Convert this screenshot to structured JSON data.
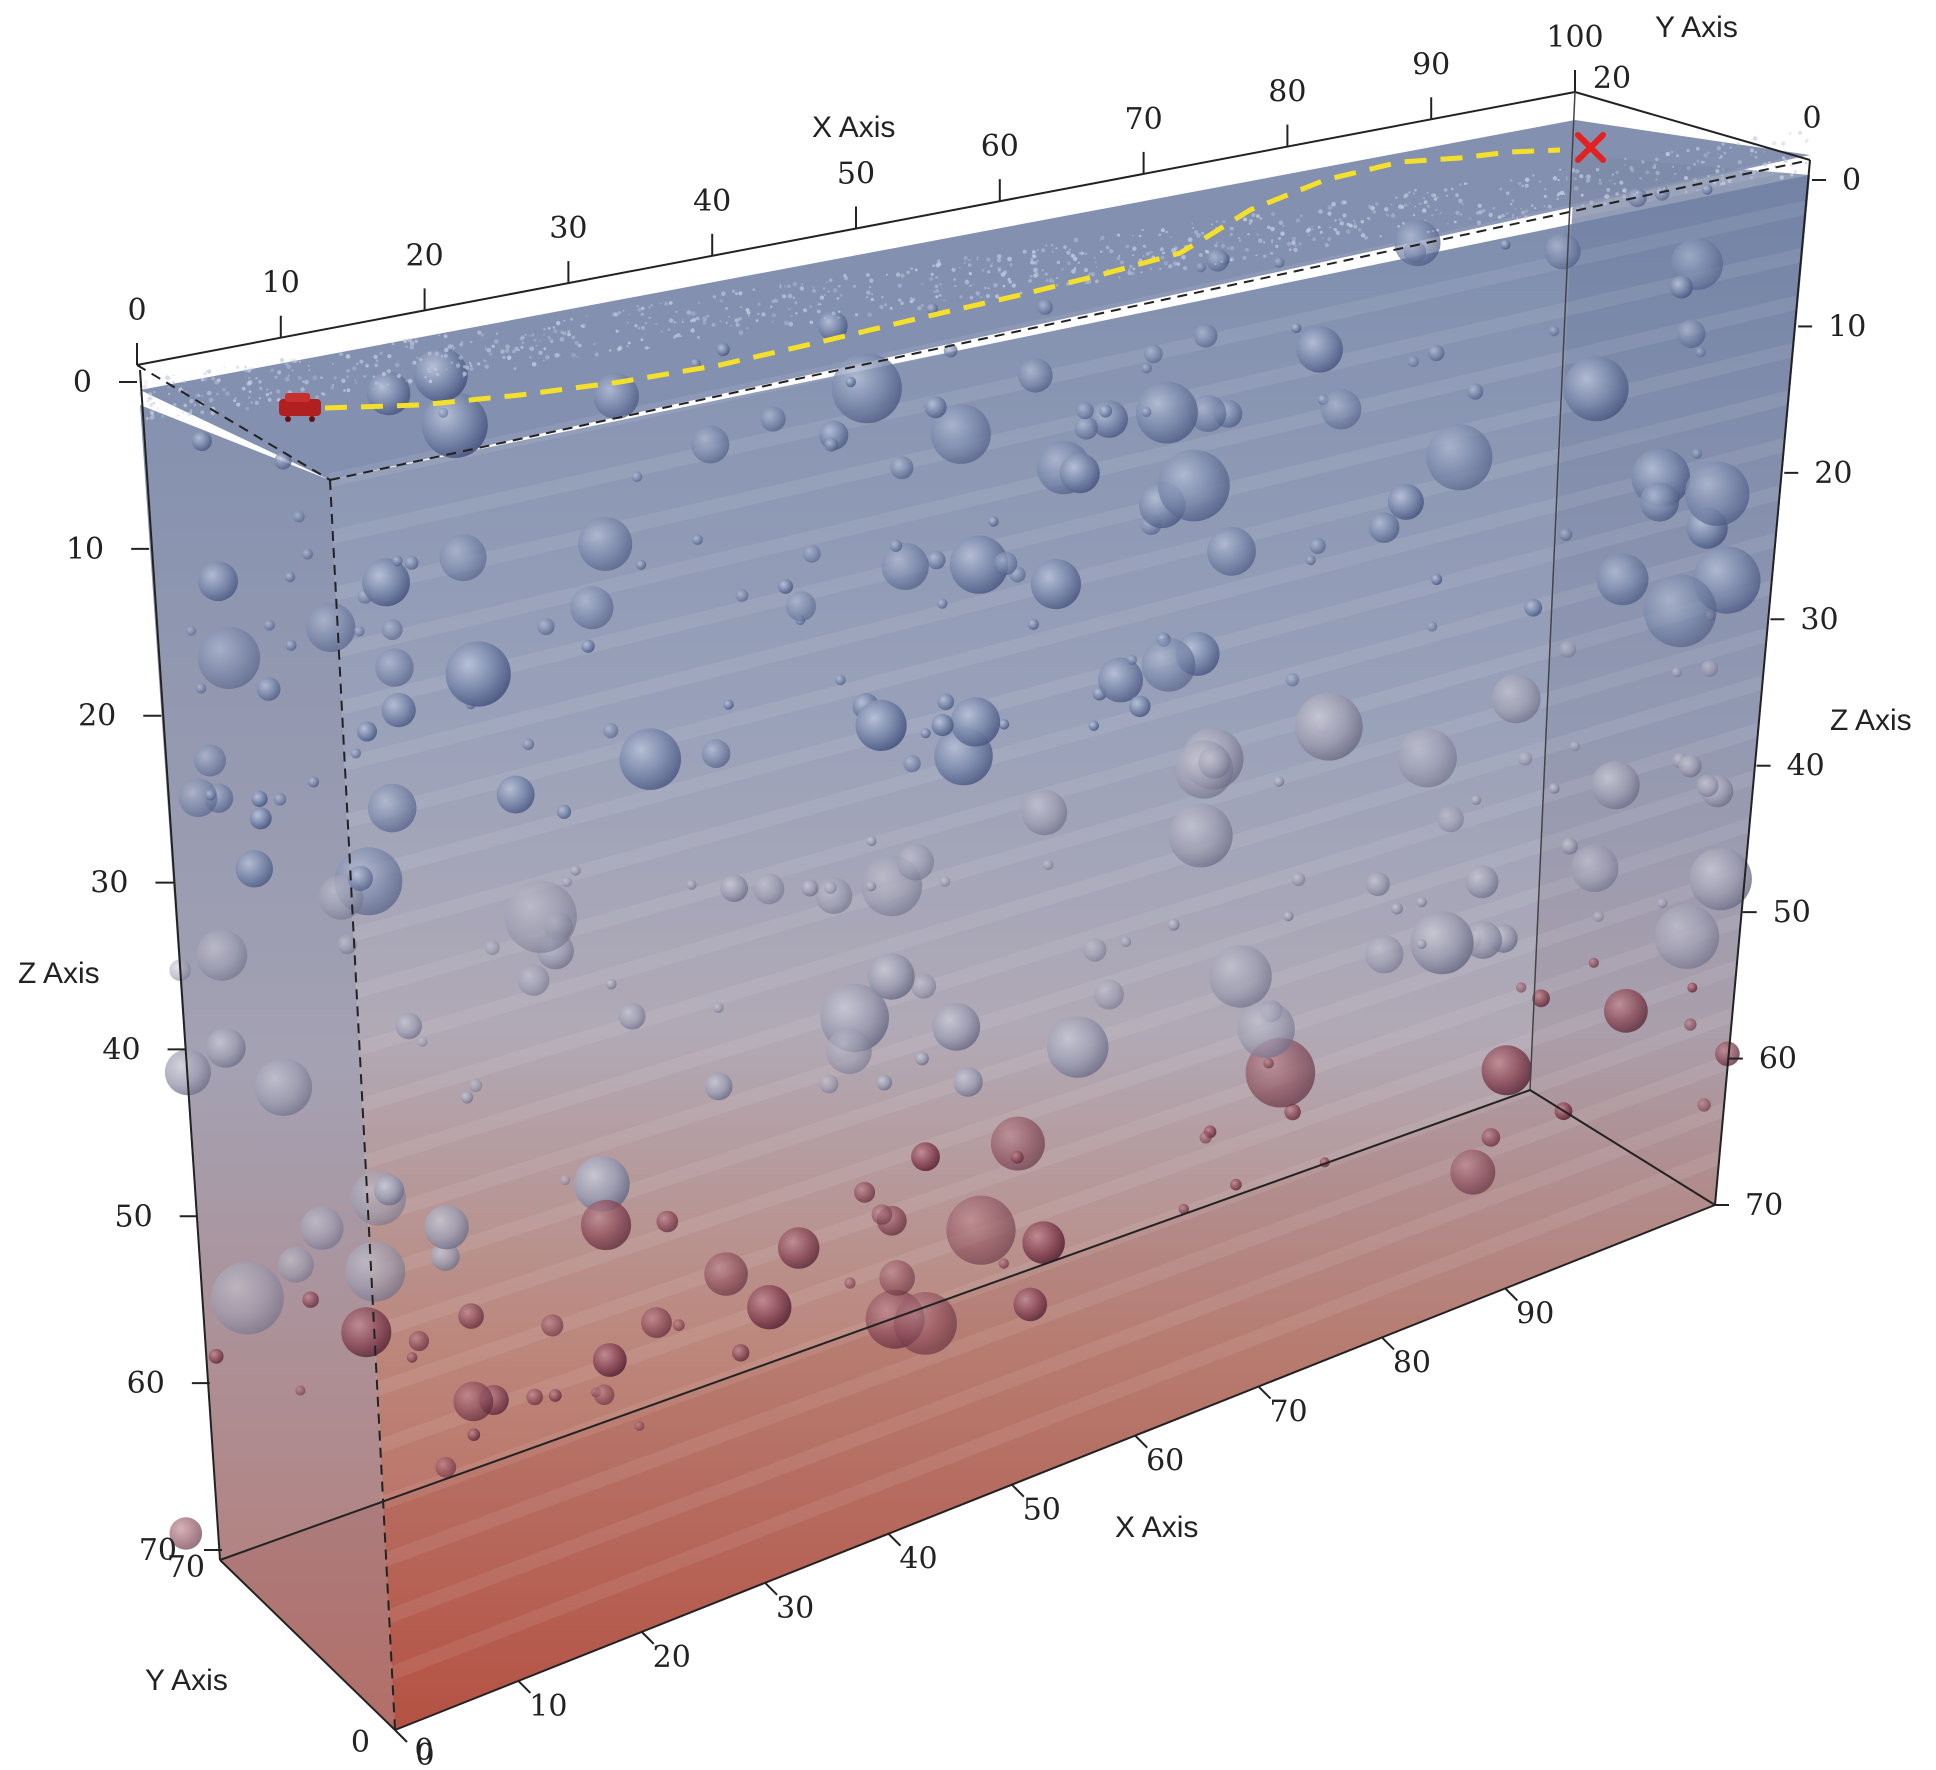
{
  "colors": {
    "shallow": "#6f80a4",
    "mid": "#a8a8bc",
    "deep": "#b24a3a",
    "floor": "#c08080",
    "path": "#f4e02a",
    "start_marker": "#b02020",
    "end_marker": "#e42020",
    "spheres_upper": "#6a7aa0",
    "spheres_lower": "#7a3a48"
  },
  "axes": {
    "front_x": {
      "title": "X Axis",
      "ticks": [
        "0",
        "10",
        "20",
        "30",
        "40",
        "50",
        "60",
        "70",
        "80",
        "90"
      ]
    },
    "top_x": {
      "title": "X Axis",
      "ticks": [
        "0",
        "10",
        "20",
        "30",
        "40",
        "50",
        "60",
        "70",
        "80",
        "90",
        "100"
      ]
    },
    "left_z": {
      "title": "Z Axis",
      "ticks": [
        "0",
        "10",
        "20",
        "30",
        "40",
        "50",
        "60",
        "70"
      ]
    },
    "right_z": {
      "title": "Z Axis",
      "ticks": [
        "0",
        "10",
        "20",
        "30",
        "40",
        "50",
        "60",
        "70"
      ]
    },
    "front_y": {
      "title": "Y Axis",
      "ticks": [
        "0",
        "70"
      ]
    },
    "top_y": {
      "title": "Y Axis",
      "ticks": [
        "20",
        "0"
      ]
    }
  },
  "markers": {
    "start": "start-vehicle",
    "end": "target-x"
  }
}
